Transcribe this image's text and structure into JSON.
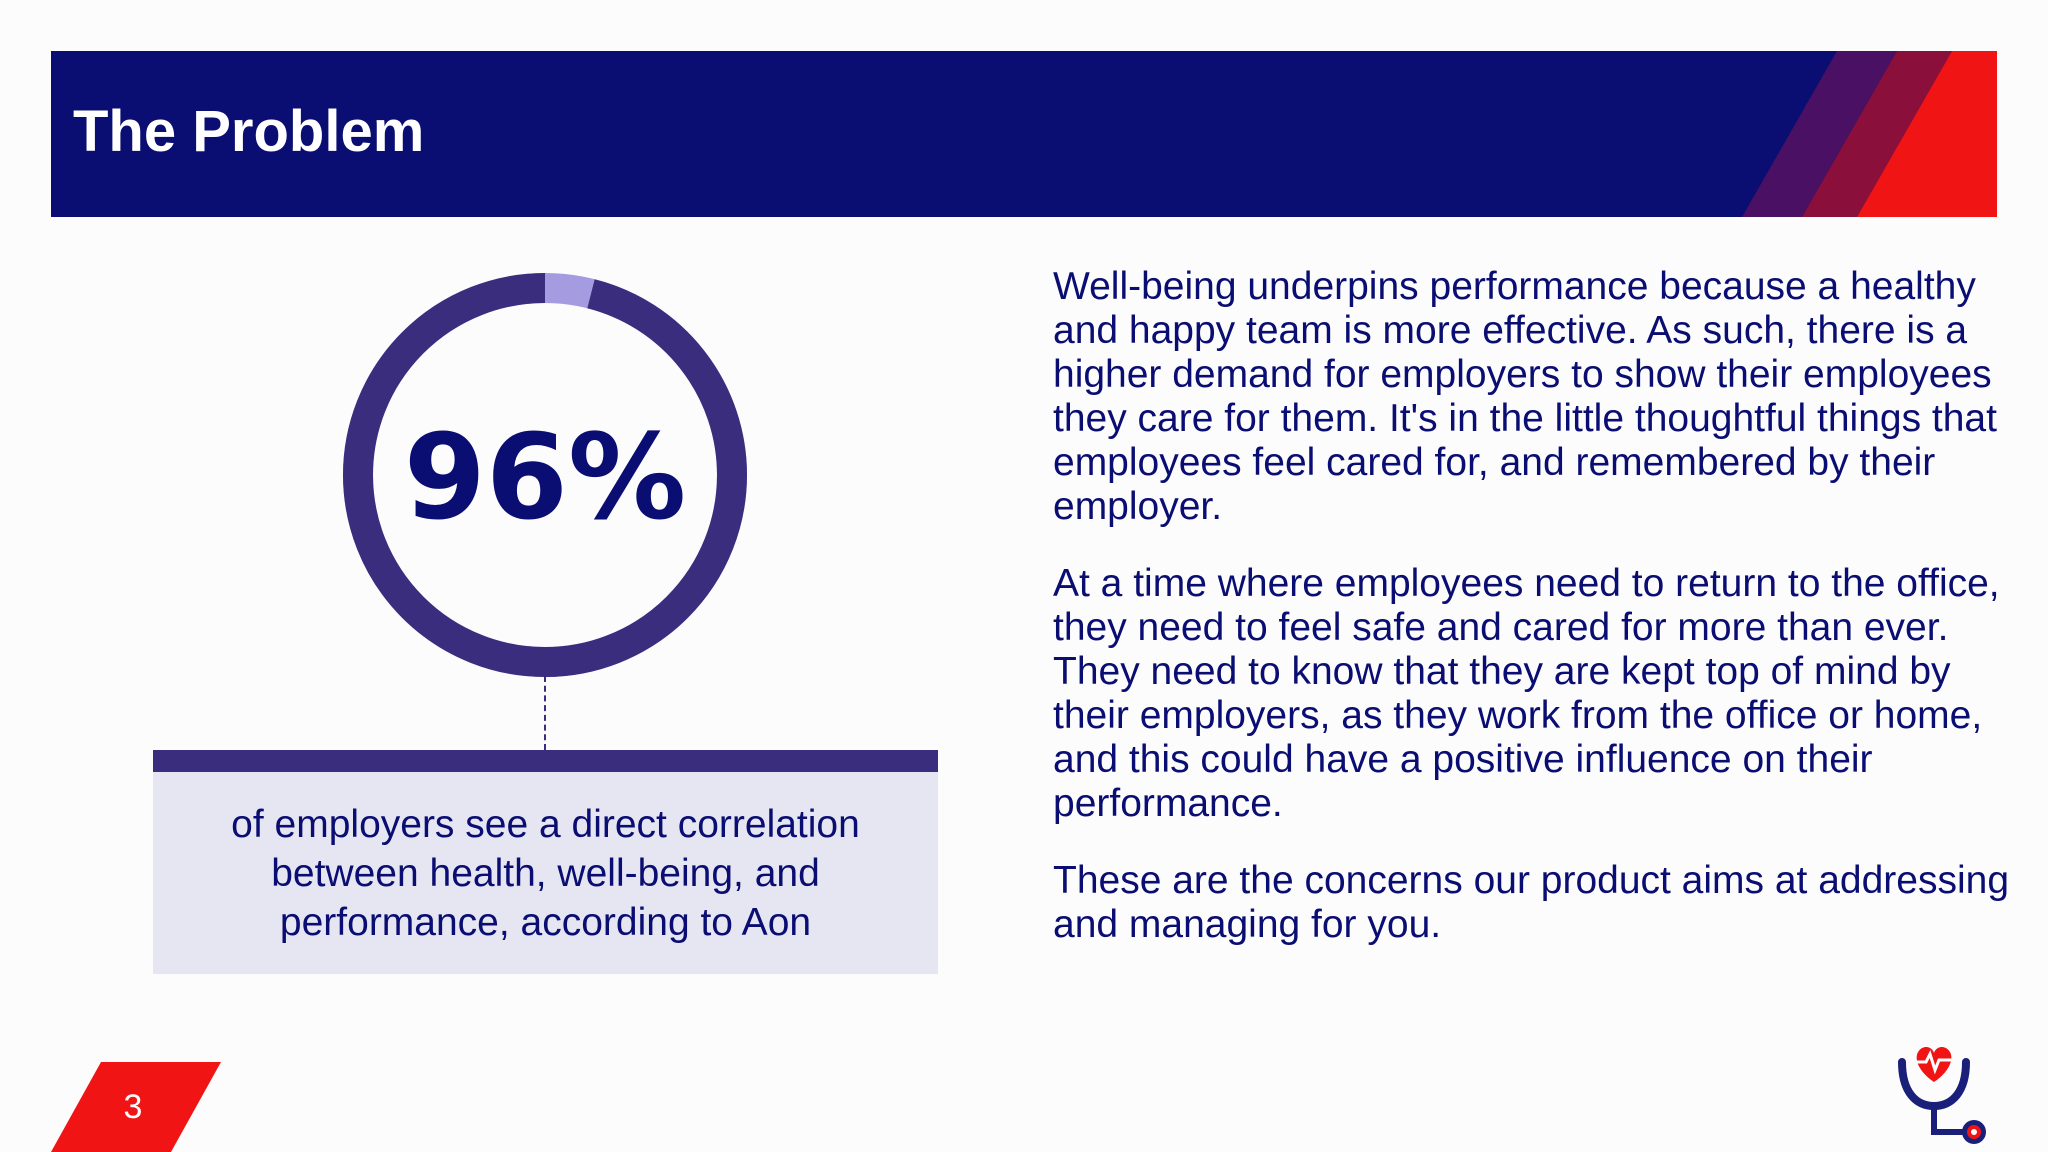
{
  "header": {
    "title": "The Problem"
  },
  "stat": {
    "value": "96%",
    "percent": 96,
    "description": "of employers see a direct correlation between health, well-being, and performance, according to Aon"
  },
  "body": {
    "paragraphs": [
      "Well-being underpins performance  because a healthy and happy team is more effective. As such, there is a higher demand for employers to show their employees they care for them. It's in the little thoughtful things that employees feel cared for, and remembered by their employer.",
      "At a time where employees need to return to the office, they need to feel safe and cared for more than ever. They need to know that they are kept top of mind by their employers, as they work from the office or home, and this could have a positive influence on their performance.",
      "These are the concerns our product aims at addressing and managing for you."
    ]
  },
  "footer": {
    "page_number": "3"
  },
  "logo": {
    "icon": "heart-stethoscope-icon"
  },
  "colors": {
    "navy": "#0a0d72",
    "ring": "#3a2d7e",
    "ring_remainder": "#a59be0",
    "accent_red": "#f01414",
    "callout_bg": "#e6e6f2"
  }
}
